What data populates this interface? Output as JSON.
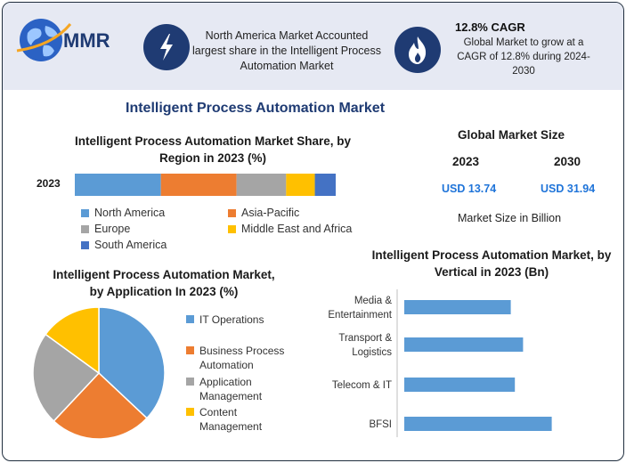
{
  "brand": {
    "logo_text": "MMR"
  },
  "header": {
    "card1_text": "North America Market Accounted largest share in the Intelligent Process Automation Market",
    "card2_title": "12.8% CAGR",
    "card2_text": "Global Market to grow at a CAGR of 12.8% during 2024-2030"
  },
  "main_title": "Intelligent Process Automation Market",
  "market_size": {
    "title": "Global Market Size",
    "years": [
      "2023",
      "2030"
    ],
    "values": [
      "USD 13.74",
      "USD 31.94"
    ],
    "note": "Market Size in Billion"
  },
  "chart_data": [
    {
      "type": "bar",
      "orientation": "horizontal-stacked",
      "title": "Intelligent Process Automation Market Share, by Region in 2023 (%)",
      "categories": [
        "2023"
      ],
      "series": [
        {
          "name": "North America",
          "values": [
            33
          ],
          "color": "#5b9bd5"
        },
        {
          "name": "Asia-Pacific",
          "values": [
            29
          ],
          "color": "#ed7d31"
        },
        {
          "name": "Europe",
          "values": [
            19
          ],
          "color": "#a5a5a5"
        },
        {
          "name": "Middle East and Africa",
          "values": [
            11
          ],
          "color": "#ffc000"
        },
        {
          "name": "South America",
          "values": [
            8
          ],
          "color": "#4472c4"
        }
      ],
      "legend_position": "bottom"
    },
    {
      "type": "pie",
      "title": "Intelligent Process Automation Market, by Application In 2023 (%)",
      "labels": [
        "IT Operations",
        "Business Process Automation",
        "Application Management",
        "Content Management"
      ],
      "values": [
        37,
        25,
        23,
        15
      ],
      "colors": [
        "#5b9bd5",
        "#ed7d31",
        "#a5a5a5",
        "#ffc000"
      ],
      "legend_position": "right"
    },
    {
      "type": "bar",
      "orientation": "horizontal",
      "title": "Intelligent Process Automation Market, by Vertical in 2023 (Bn)",
      "categories": [
        "Media & Entertainment",
        "Transport & Logistics",
        "Telecom & IT",
        "BFSI"
      ],
      "values": [
        2.6,
        2.9,
        2.7,
        3.6
      ],
      "xlim": [
        0,
        5
      ],
      "color": "#5b9bd5",
      "grid": false
    }
  ]
}
